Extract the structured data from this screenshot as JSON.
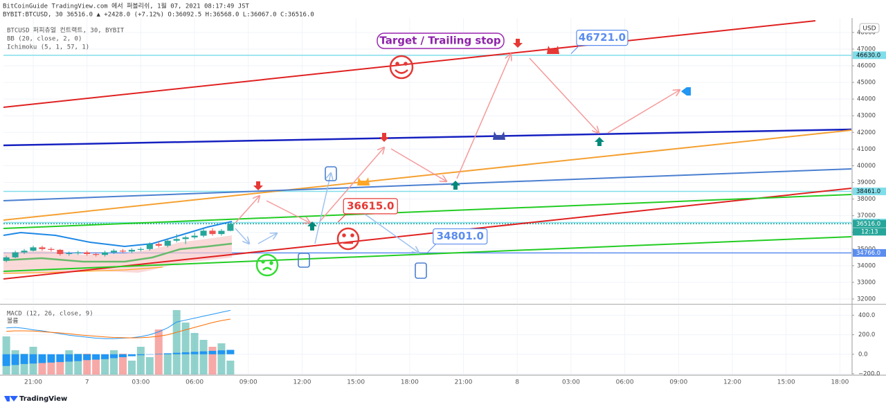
{
  "header": {
    "line1": "BitCoinGuide TradingView.com 에서 퍼블리쉬, 1월 07, 2021 08:17:49 JST",
    "line2": "BYBIT:BTCUSD, 30 36516.0 ▲ +2428.0 (+7.12%) O:36092.5 H:36568.0 L:36067.0 C:36516.0"
  },
  "footer": "TradingView",
  "chart_data": [
    {
      "type": "candlestick",
      "title": "BTCUSD 퍼피츄얼 컨트랙트, 30, BYBIT",
      "indicators": [
        "BB (20, close, 2, 0)",
        "Ichimoku (5, 1, 57, 1)"
      ],
      "currency": "USD",
      "x": [
        -1.5,
        -1,
        -0.5,
        0,
        0.5,
        1,
        1.5,
        2,
        2.5,
        3,
        3.5,
        4,
        4.5,
        5,
        5.5,
        6,
        6.5,
        7,
        7.5,
        8,
        8.5,
        9,
        9.5,
        10,
        10.5,
        11
      ],
      "open": [
        34300,
        34500,
        34800,
        34900,
        35100,
        35000,
        34950,
        34700,
        34750,
        34800,
        34700,
        34650,
        34800,
        34900,
        34850,
        34950,
        35000,
        35300,
        35200,
        35500,
        35600,
        35700,
        35800,
        36100,
        35900,
        36092.5
      ],
      "high": [
        34600,
        34900,
        35000,
        35200,
        35200,
        35100,
        35000,
        34850,
        34900,
        34900,
        34800,
        34900,
        35000,
        35000,
        35050,
        35100,
        35400,
        35450,
        35600,
        35900,
        35800,
        36000,
        36300,
        36250,
        36200,
        36568
      ],
      "low": [
        34200,
        34450,
        34700,
        34850,
        34900,
        34850,
        34600,
        34600,
        34650,
        34600,
        34550,
        34550,
        34700,
        34750,
        34750,
        34850,
        34900,
        35100,
        35100,
        35400,
        35300,
        35600,
        35700,
        35800,
        35800,
        36067
      ],
      "close": [
        34500,
        34800,
        34900,
        35100,
        35000,
        34950,
        34700,
        34750,
        34800,
        34700,
        34650,
        34800,
        34900,
        34850,
        34950,
        35000,
        35300,
        35200,
        35500,
        35600,
        35700,
        35800,
        36100,
        35900,
        36092.5,
        36516
      ],
      "up_color": "#26a69a",
      "down_color": "#ef5350",
      "xlim": [
        -1.66,
        45.64
      ],
      "xticks": [
        {
          "value": 0,
          "label": "21:00"
        },
        {
          "value": 3,
          "label": "7"
        },
        {
          "value": 6,
          "label": "03:00"
        },
        {
          "value": 9,
          "label": "06:00"
        },
        {
          "value": 12,
          "label": "09:00"
        },
        {
          "value": 15,
          "label": "12:00"
        },
        {
          "value": 18,
          "label": "15:00"
        },
        {
          "value": 21,
          "label": "18:00"
        },
        {
          "value": 24,
          "label": "21:00"
        },
        {
          "value": 27,
          "label": "8"
        },
        {
          "value": 30,
          "label": "03:00"
        },
        {
          "value": 33,
          "label": "06:00"
        },
        {
          "value": 36,
          "label": "09:00"
        },
        {
          "value": 39,
          "label": "12:00"
        },
        {
          "value": 42,
          "label": "15:00"
        },
        {
          "value": 45,
          "label": "18:00"
        }
      ],
      "ylim": [
        31750,
        48700
      ],
      "yticks": [
        32000,
        33000,
        34000,
        35000,
        36000,
        37000,
        38000,
        39000,
        40000,
        41000,
        42000,
        43000,
        44000,
        45000,
        46000,
        47000,
        48000
      ],
      "grid": true,
      "price_levels": [
        {
          "value": 46630,
          "label": "46630.0",
          "color": "#80deea"
        },
        {
          "value": 38461,
          "label": "38461.0",
          "color": "#80deea"
        },
        {
          "value": 36591.5,
          "label": "36591.5",
          "color": "#80deea"
        },
        {
          "value": 36516,
          "label": "36516.0",
          "color": "#26a69a"
        },
        {
          "value": 34766,
          "label": "34766.0",
          "color": "#5b8def"
        }
      ],
      "countdown": "12:13",
      "note": "Target / Trailing stop",
      "callouts": [
        {
          "x": 30,
          "value": 46721,
          "label": "46721.0",
          "color": "#5b8def"
        },
        {
          "x": 17,
          "value": 36615,
          "label": "36615.0",
          "color": "#e53935"
        },
        {
          "x": 22,
          "value": 34801,
          "label": "34801.0",
          "color": "#5b8def"
        }
      ]
    },
    {
      "type": "macd",
      "title": "MACD (12, 26, close, 9)",
      "x": [
        -1.5,
        -1,
        -0.5,
        0,
        0.5,
        1,
        1.5,
        2,
        2.5,
        3,
        3.5,
        4,
        4.5,
        5,
        5.5,
        6,
        6.5,
        7,
        7.5,
        8,
        8.5,
        9,
        9.5,
        10,
        10.5,
        11
      ],
      "ylim": [
        -207,
        502
      ],
      "yticks": [
        {
          "value": 400,
          "label": "400.0"
        },
        {
          "value": 200,
          "label": "200.0"
        },
        {
          "value": 0,
          "label": "0.0"
        },
        {
          "value": -200,
          "label": "−200.0"
        }
      ],
      "series": [
        {
          "color": "#2196f3",
          "values": [
            270,
            275,
            265,
            250,
            240,
            225,
            210,
            195,
            185,
            175,
            165,
            160,
            160,
            165,
            170,
            180,
            200,
            230,
            270,
            330,
            350,
            370,
            390,
            410,
            430,
            450
          ]
        },
        {
          "color": "#ff6d00",
          "values": [
            235,
            240,
            240,
            238,
            232,
            225,
            218,
            210,
            200,
            192,
            185,
            178,
            172,
            170,
            168,
            170,
            175,
            185,
            200,
            225,
            250,
            275,
            300,
            325,
            345,
            360
          ]
        }
      ],
      "histogram": {
        "color": "#2196f3",
        "values": [
          -120,
          -110,
          -100,
          -95,
          -90,
          -85,
          -80,
          -75,
          -70,
          -60,
          -55,
          -50,
          -40,
          -30,
          -20,
          -10,
          0,
          5,
          10,
          15,
          20,
          25,
          30,
          35,
          40,
          45
        ]
      },
      "volume": {
        "name": "볼륨",
        "vlim": [
          0,
          100
        ],
        "values": [
          55,
          35,
          30,
          40,
          25,
          25,
          20,
          35,
          30,
          30,
          25,
          25,
          35,
          30,
          20,
          40,
          25,
          65,
          30,
          93,
          75,
          60,
          50,
          40,
          45,
          20
        ]
      }
    }
  ]
}
